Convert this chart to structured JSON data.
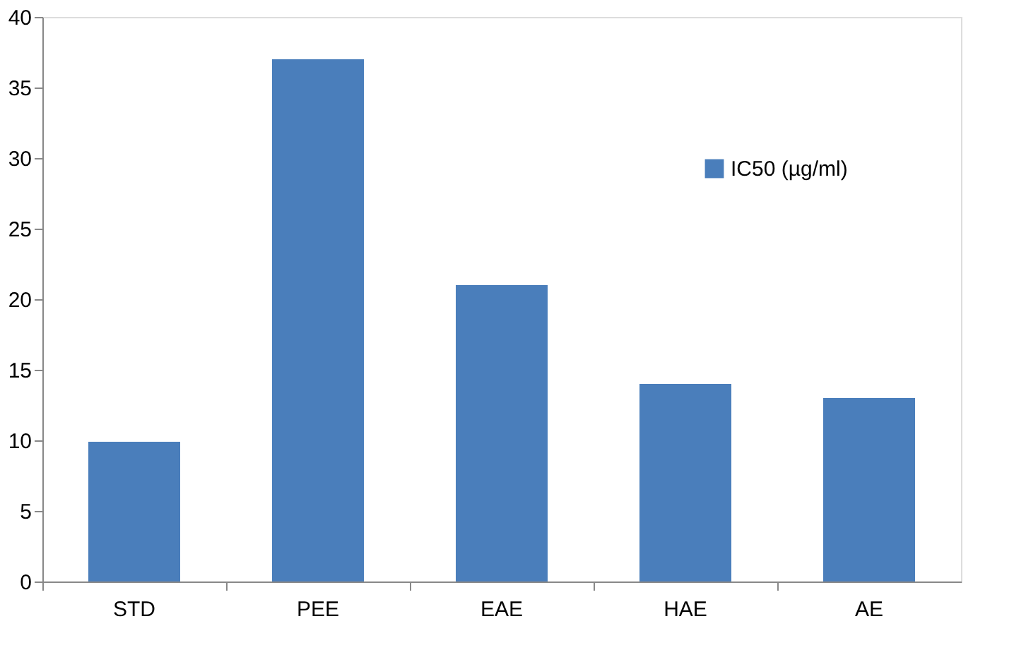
{
  "chart_data": {
    "type": "bar",
    "categories": [
      "STD",
      "PEE",
      "EAE",
      "HAE",
      "AE"
    ],
    "series": [
      {
        "name": "IC50  (µg/ml)",
        "color": "#4a7ebb",
        "values": [
          9.9,
          37,
          21,
          14,
          13
        ]
      }
    ],
    "ylim": [
      0,
      40
    ],
    "yticks": [
      0,
      5,
      10,
      15,
      20,
      25,
      30,
      35,
      40
    ],
    "grid": false,
    "legend": "right"
  }
}
